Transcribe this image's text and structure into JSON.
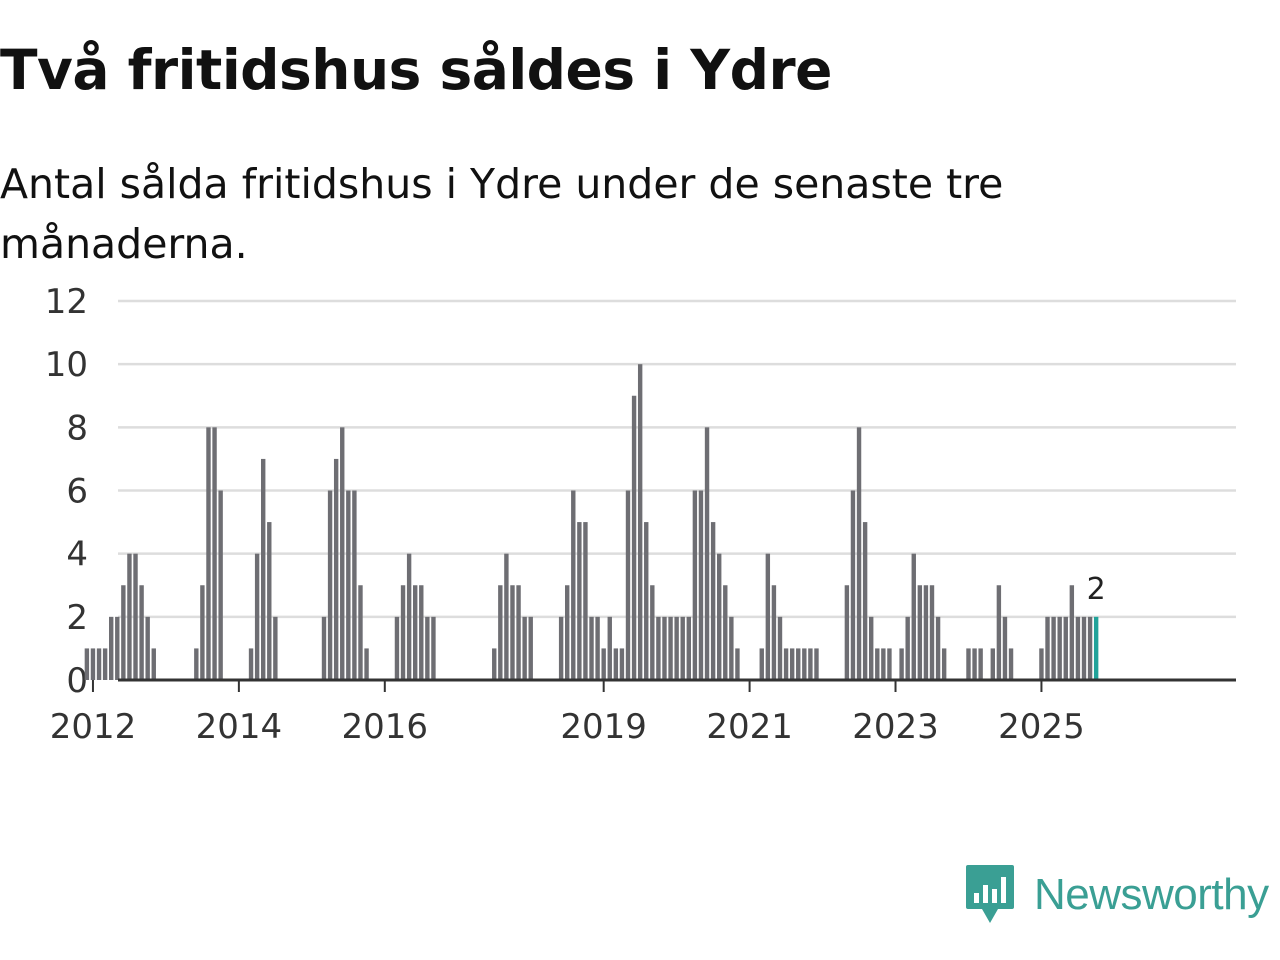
{
  "title": "Två fritidshus såldes i Ydre",
  "subtitle": "Antal sålda fritidshus i Ydre under de senaste tre månaderna.",
  "brand": {
    "name": "Newsworthy",
    "icon": "newsworthy-logo-icon",
    "color": "#3a9f94"
  },
  "colors": {
    "bar": "#6e6e73",
    "highlight": "#21a39a",
    "grid": "#dddddd",
    "axis": "#333333"
  },
  "chart_data": {
    "type": "bar",
    "xlabel": "",
    "ylabel": "",
    "ylim": [
      0,
      12
    ],
    "yticks": [
      0,
      2,
      4,
      6,
      8,
      10,
      12
    ],
    "xticks": [
      {
        "label": "2012",
        "year": 2012
      },
      {
        "label": "2014",
        "year": 2014
      },
      {
        "label": "2016",
        "year": 2016
      },
      {
        "label": "2019",
        "year": 2019
      },
      {
        "label": "2021",
        "year": 2021
      },
      {
        "label": "2023",
        "year": 2023
      },
      {
        "label": "2025",
        "year": 2025
      }
    ],
    "x_start": "2011-01",
    "x_end": "2026-12",
    "series": [
      {
        "months": [
          "2011-12",
          "2012-01",
          "2012-02",
          "2012-03",
          "2012-04",
          "2012-05",
          "2012-06",
          "2012-07",
          "2012-08",
          "2012-09",
          "2012-10",
          "2012-11",
          "2012-12",
          "2013-06",
          "2013-07",
          "2013-08",
          "2013-09",
          "2013-10",
          "2014-03",
          "2014-04",
          "2014-05",
          "2014-06",
          "2014-07",
          "2015-03",
          "2015-04",
          "2015-05",
          "2015-06",
          "2015-07",
          "2015-08",
          "2015-09",
          "2015-10",
          "2016-03",
          "2016-04",
          "2016-05",
          "2016-06",
          "2016-07",
          "2016-08",
          "2016-09",
          "2017-07",
          "2017-08",
          "2017-09",
          "2017-10",
          "2017-11",
          "2017-12",
          "2018-01",
          "2018-06",
          "2018-07",
          "2018-08",
          "2018-09",
          "2018-10",
          "2018-11",
          "2018-12",
          "2019-01",
          "2019-02",
          "2019-03",
          "2019-04",
          "2019-05",
          "2019-06",
          "2019-07",
          "2019-08",
          "2019-09",
          "2019-10",
          "2019-11",
          "2019-12",
          "2020-01",
          "2020-02",
          "2020-03",
          "2020-04",
          "2020-05",
          "2020-06",
          "2020-07",
          "2020-08",
          "2020-09",
          "2020-10",
          "2020-11",
          "2020-12",
          "2021-01",
          "2021-03",
          "2021-04",
          "2021-05",
          "2021-06",
          "2021-07",
          "2021-08",
          "2021-09",
          "2021-10",
          "2021-11",
          "2021-12",
          "2022-05",
          "2022-06",
          "2022-07",
          "2022-08",
          "2022-09",
          "2022-10",
          "2022-11",
          "2022-12",
          "2023-02",
          "2023-03",
          "2023-04",
          "2023-05",
          "2023-06",
          "2023-07",
          "2023-08",
          "2023-09",
          "2023-10",
          "2024-01",
          "2024-02",
          "2024-03",
          "2024-05",
          "2024-06",
          "2024-07",
          "2024-08",
          "2025-01",
          "2025-02",
          "2025-03",
          "2025-04",
          "2025-05",
          "2025-06",
          "2025-07",
          "2025-08",
          "2025-09",
          "2025-10"
        ],
        "values": [
          1,
          1,
          1,
          1,
          2,
          2,
          3,
          4,
          4,
          3,
          2,
          1,
          0,
          1,
          3,
          8,
          8,
          6,
          1,
          4,
          7,
          5,
          2,
          2,
          6,
          7,
          8,
          6,
          6,
          3,
          1,
          2,
          3,
          4,
          3,
          3,
          2,
          2,
          1,
          3,
          4,
          3,
          3,
          2,
          2,
          2,
          3,
          6,
          5,
          5,
          2,
          2,
          1,
          2,
          1,
          1,
          6,
          9,
          10,
          5,
          3,
          2,
          2,
          2,
          2,
          2,
          2,
          6,
          6,
          8,
          5,
          4,
          3,
          2,
          1,
          0,
          0,
          1,
          4,
          3,
          2,
          1,
          1,
          1,
          1,
          1,
          1,
          3,
          6,
          8,
          5,
          2,
          1,
          1,
          1,
          1,
          2,
          4,
          3,
          3,
          3,
          2,
          1,
          0,
          1,
          1,
          1,
          1,
          3,
          2,
          1,
          1,
          2,
          2,
          2,
          2,
          3,
          2,
          2,
          2,
          2
        ]
      }
    ],
    "highlight": {
      "month": "2025-10",
      "value": 2,
      "label": "2"
    }
  }
}
